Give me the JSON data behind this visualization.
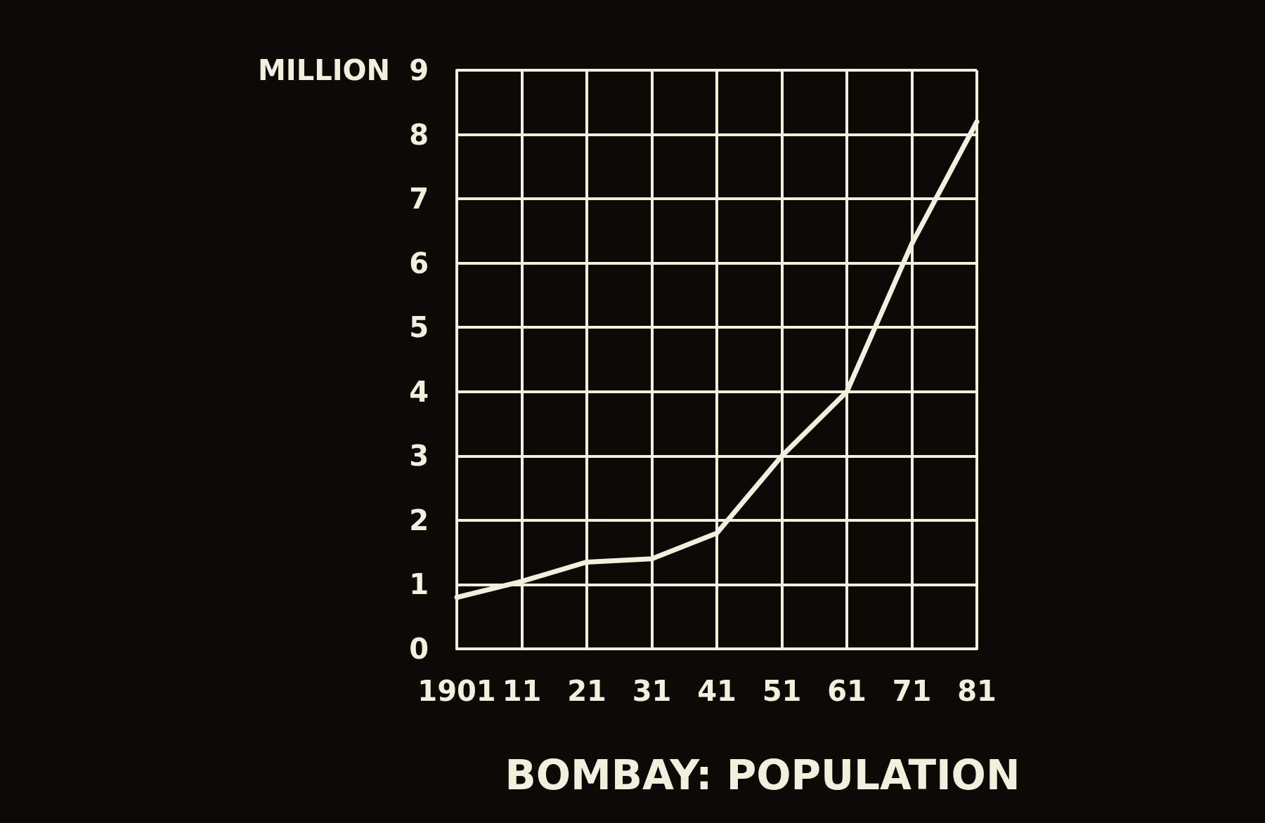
{
  "chart_data": {
    "type": "line",
    "title": "BOMBAY: POPULATION",
    "ylabel": "MILLION",
    "categories": [
      "1901",
      "11",
      "21",
      "31",
      "41",
      "51",
      "61",
      "71",
      "81"
    ],
    "series": [
      {
        "color": "#f2f0dc",
        "values": [
          0.8,
          1.05,
          1.35,
          1.4,
          1.8,
          3.0,
          4.0,
          6.3,
          8.2
        ]
      }
    ],
    "ylim": [
      0,
      9
    ],
    "yticks": [
      0,
      1,
      2,
      3,
      4,
      5,
      6,
      7,
      8,
      9
    ],
    "grid": true,
    "marker": "none",
    "line_style": "solid"
  }
}
